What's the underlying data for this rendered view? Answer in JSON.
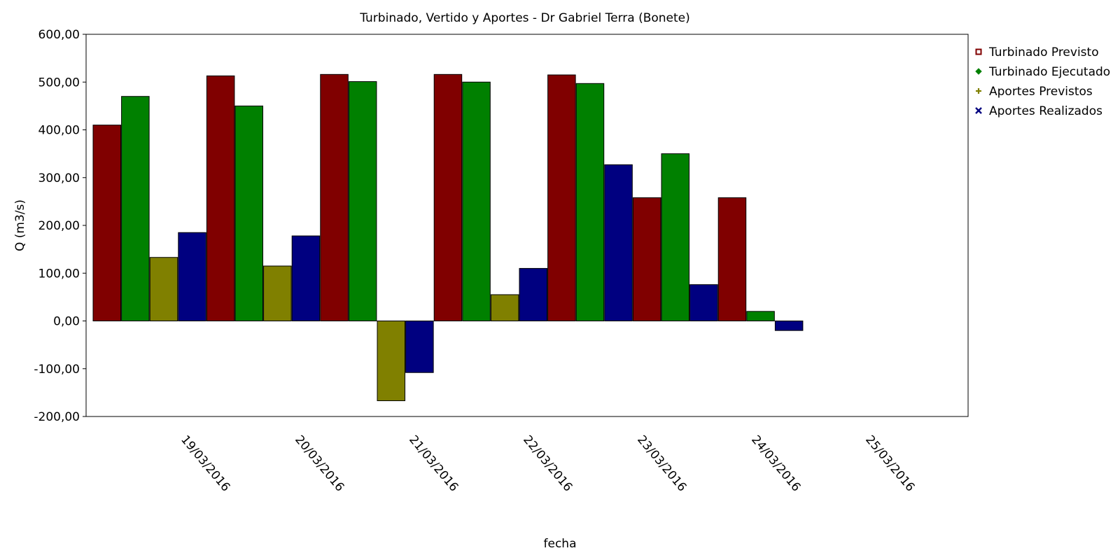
{
  "chart_data": {
    "type": "bar",
    "title": "Turbinado, Vertido y Aportes - Dr Gabriel Terra (Bonete)",
    "xlabel": "fecha",
    "ylabel": "Q (m3/s)",
    "ylim": [
      -200,
      600
    ],
    "yticks": [
      "600,00",
      "500,00",
      "400,00",
      "300,00",
      "200,00",
      "100,00",
      "0,00",
      "-100,00",
      "-200,00"
    ],
    "ytick_values": [
      600,
      500,
      400,
      300,
      200,
      100,
      0,
      -100,
      -200
    ],
    "categories": [
      "19/03/2016",
      "20/03/2016",
      "21/03/2016",
      "22/03/2016",
      "23/03/2016",
      "24/03/2016",
      "25/03/2016"
    ],
    "legend_position": "right",
    "grid": false,
    "series": [
      {
        "name": "Turbinado Previsto",
        "color": "#800000",
        "marker": "square",
        "values": [
          410,
          513,
          516,
          516,
          515,
          258,
          258
        ]
      },
      {
        "name": "Turbinado Ejecutado",
        "color": "#008000",
        "marker": "diamond",
        "values": [
          470,
          450,
          501,
          500,
          497,
          350,
          20
        ]
      },
      {
        "name": "Aportes Previstos",
        "color": "#808000",
        "marker": "plus",
        "values": [
          133,
          115,
          -167,
          55,
          null,
          null,
          null
        ]
      },
      {
        "name": "Aportes Realizados",
        "color": "#000080",
        "marker": "cross",
        "values": [
          185,
          178,
          -108,
          110,
          327,
          76,
          -20
        ]
      }
    ]
  }
}
